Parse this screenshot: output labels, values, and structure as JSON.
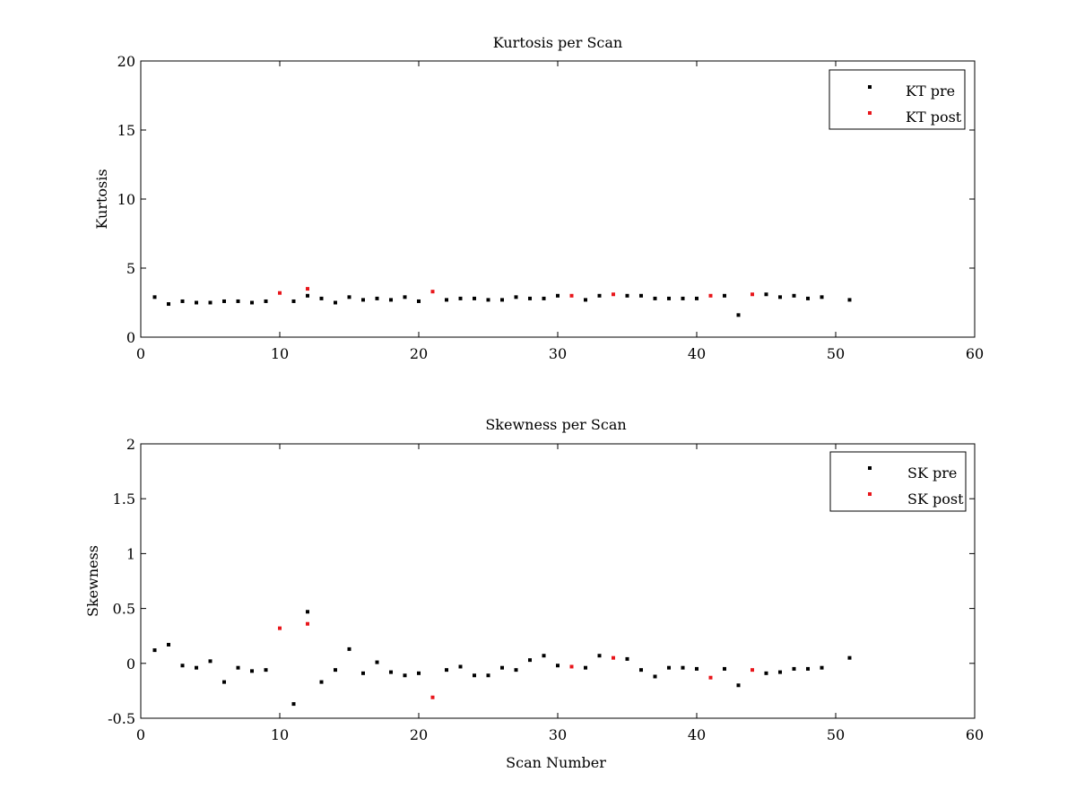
{
  "figure": {
    "background": "#ffffff"
  },
  "chart_data": [
    {
      "id": "kurtosis",
      "type": "scatter",
      "title": "Kurtosis per Scan",
      "xlabel": "",
      "ylabel": "Kurtosis",
      "xlim": [
        0,
        60
      ],
      "ylim": [
        0,
        20
      ],
      "xticks": [
        0,
        10,
        20,
        30,
        40,
        50,
        60
      ],
      "yticks": [
        0,
        5,
        10,
        15,
        20
      ],
      "xtick_labels": [
        "0",
        "10",
        "20",
        "30",
        "40",
        "50",
        "60"
      ],
      "ytick_labels": [
        "0",
        "5",
        "10",
        "15",
        "20"
      ],
      "grid": false,
      "legend_position": "top-right",
      "series": [
        {
          "name": "KT pre",
          "color": "#000000",
          "x": [
            1,
            2,
            3,
            4,
            5,
            6,
            7,
            8,
            9,
            11,
            12,
            13,
            14,
            15,
            16,
            17,
            18,
            19,
            20,
            22,
            23,
            24,
            25,
            26,
            27,
            28,
            29,
            30,
            32,
            33,
            35,
            36,
            37,
            38,
            39,
            40,
            42,
            43,
            45,
            46,
            47,
            48,
            49,
            51
          ],
          "y": [
            2.9,
            2.4,
            2.6,
            2.5,
            2.5,
            2.6,
            2.6,
            2.5,
            2.6,
            2.6,
            3.0,
            2.8,
            2.5,
            2.9,
            2.7,
            2.8,
            2.7,
            2.9,
            2.6,
            2.7,
            2.8,
            2.8,
            2.7,
            2.7,
            2.9,
            2.8,
            2.8,
            3.0,
            2.7,
            3.0,
            3.0,
            3.0,
            2.8,
            2.8,
            2.8,
            2.8,
            3.0,
            1.6,
            3.1,
            2.9,
            3.0,
            2.8,
            2.9,
            2.7
          ]
        },
        {
          "name": "KT post",
          "color": "#e8161b",
          "x": [
            10,
            12,
            21,
            31,
            34,
            41,
            44
          ],
          "y": [
            3.2,
            3.5,
            3.3,
            3.0,
            3.1,
            3.0,
            3.1
          ]
        }
      ]
    },
    {
      "id": "skewness",
      "type": "scatter",
      "title": "Skewness per Scan",
      "xlabel": "Scan Number",
      "ylabel": "Skewness",
      "xlim": [
        0,
        60
      ],
      "ylim": [
        -0.5,
        2
      ],
      "xticks": [
        0,
        10,
        20,
        30,
        40,
        50,
        60
      ],
      "yticks": [
        -0.5,
        0,
        0.5,
        1,
        1.5,
        2
      ],
      "xtick_labels": [
        "0",
        "10",
        "20",
        "30",
        "40",
        "50",
        "60"
      ],
      "ytick_labels": [
        "-0.5",
        "0",
        "0.5",
        "1",
        "1.5",
        "2"
      ],
      "grid": false,
      "legend_position": "top-right",
      "series": [
        {
          "name": "SK pre",
          "color": "#000000",
          "x": [
            1,
            2,
            3,
            4,
            5,
            6,
            7,
            8,
            9,
            11,
            12,
            13,
            14,
            15,
            16,
            17,
            18,
            19,
            20,
            22,
            23,
            24,
            25,
            26,
            27,
            28,
            29,
            30,
            32,
            33,
            35,
            36,
            37,
            38,
            39,
            40,
            42,
            43,
            45,
            46,
            47,
            48,
            49,
            51
          ],
          "y": [
            0.12,
            0.17,
            -0.02,
            -0.04,
            0.02,
            -0.17,
            -0.04,
            -0.07,
            -0.06,
            -0.37,
            0.47,
            -0.17,
            -0.06,
            0.13,
            -0.09,
            0.01,
            -0.08,
            -0.11,
            -0.09,
            -0.06,
            -0.03,
            -0.11,
            -0.11,
            -0.04,
            -0.06,
            0.03,
            0.07,
            -0.02,
            -0.04,
            0.07,
            0.04,
            -0.06,
            -0.12,
            -0.04,
            -0.04,
            -0.05,
            -0.05,
            -0.2,
            -0.09,
            -0.08,
            -0.05,
            -0.05,
            -0.04,
            0.05
          ]
        },
        {
          "name": "SK post",
          "color": "#e8161b",
          "x": [
            10,
            12,
            21,
            31,
            34,
            41,
            44
          ],
          "y": [
            0.32,
            0.36,
            -0.31,
            -0.03,
            0.05,
            -0.13,
            -0.06
          ]
        }
      ]
    }
  ]
}
